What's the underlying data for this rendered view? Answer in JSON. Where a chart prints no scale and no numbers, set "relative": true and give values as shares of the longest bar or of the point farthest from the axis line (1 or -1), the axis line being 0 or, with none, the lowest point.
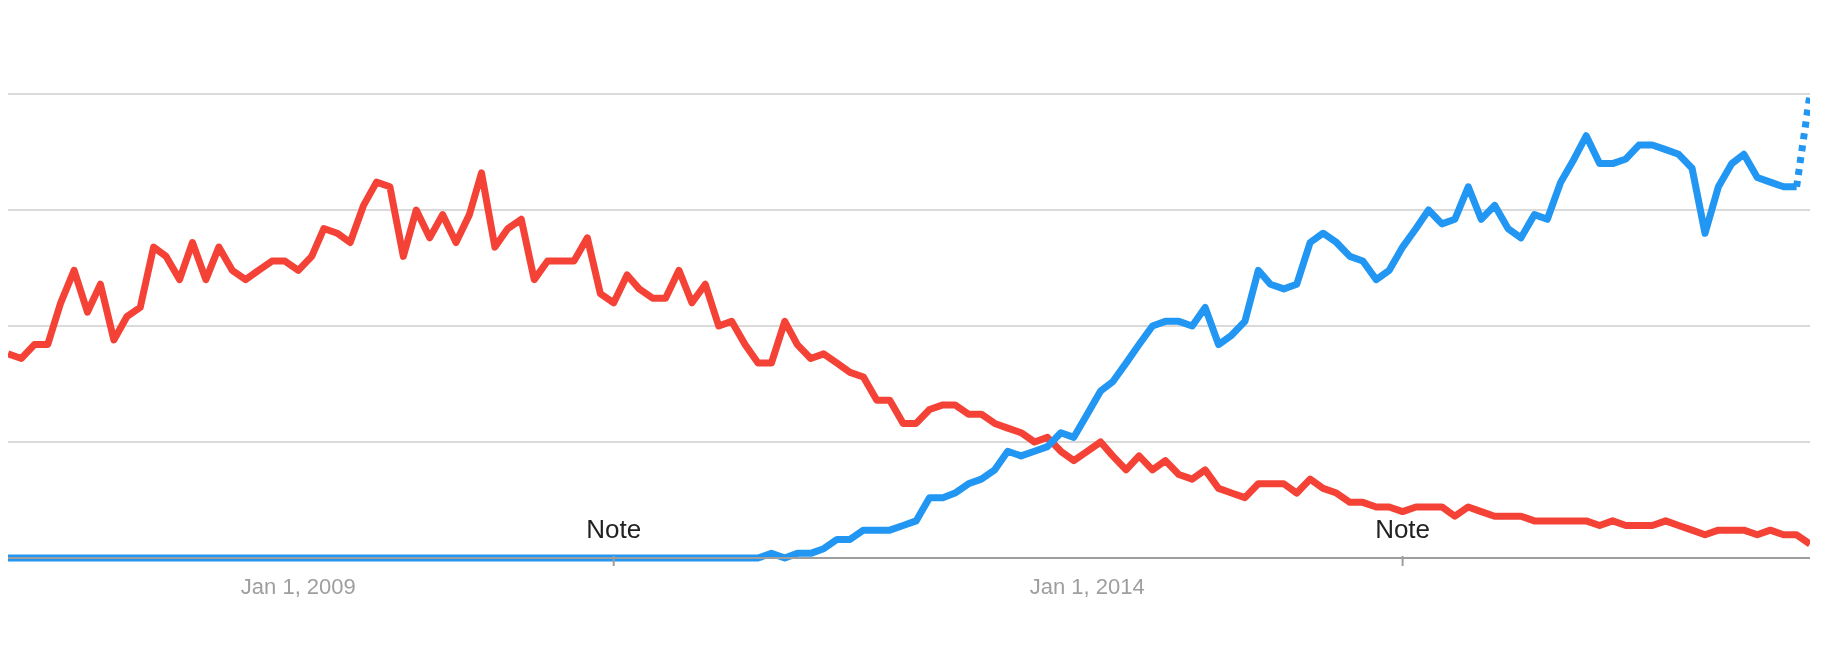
{
  "chart_data": {
    "type": "line",
    "relative": true,
    "grid": "y",
    "marker": "none",
    "x": [
      "2007-03",
      "2007-04",
      "2007-05",
      "2007-06",
      "2007-07",
      "2007-08",
      "2007-09",
      "2007-10",
      "2007-11",
      "2007-12",
      "2008-01",
      "2008-02",
      "2008-03",
      "2008-04",
      "2008-05",
      "2008-06",
      "2008-07",
      "2008-08",
      "2008-09",
      "2008-10",
      "2008-11",
      "2008-12",
      "2009-01",
      "2009-02",
      "2009-03",
      "2009-04",
      "2009-05",
      "2009-06",
      "2009-07",
      "2009-08",
      "2009-09",
      "2009-10",
      "2009-11",
      "2009-12",
      "2010-01",
      "2010-02",
      "2010-03",
      "2010-04",
      "2010-05",
      "2010-06",
      "2010-07",
      "2010-08",
      "2010-09",
      "2010-10",
      "2010-11",
      "2010-12",
      "2011-01",
      "2011-02",
      "2011-03",
      "2011-04",
      "2011-05",
      "2011-06",
      "2011-07",
      "2011-08",
      "2011-09",
      "2011-10",
      "2011-11",
      "2011-12",
      "2012-01",
      "2012-02",
      "2012-03",
      "2012-04",
      "2012-05",
      "2012-06",
      "2012-07",
      "2012-08",
      "2012-09",
      "2012-10",
      "2012-11",
      "2012-12",
      "2013-01",
      "2013-02",
      "2013-03",
      "2013-04",
      "2013-05",
      "2013-06",
      "2013-07",
      "2013-08",
      "2013-09",
      "2013-10",
      "2013-11",
      "2013-12",
      "2014-01",
      "2014-02",
      "2014-03",
      "2014-04",
      "2014-05",
      "2014-06",
      "2014-07",
      "2014-08",
      "2014-09",
      "2014-10",
      "2014-11",
      "2014-12",
      "2015-01",
      "2015-02",
      "2015-03",
      "2015-04",
      "2015-05",
      "2015-06",
      "2015-07",
      "2015-08",
      "2015-09",
      "2015-10",
      "2015-11",
      "2015-12",
      "2016-01",
      "2016-02",
      "2016-03",
      "2016-04",
      "2016-05",
      "2016-06",
      "2016-07",
      "2016-08",
      "2016-09",
      "2016-10",
      "2016-11",
      "2016-12",
      "2017-01",
      "2017-02",
      "2017-03",
      "2017-04",
      "2017-05",
      "2017-06",
      "2017-07",
      "2017-08",
      "2017-09",
      "2017-10",
      "2017-11",
      "2017-12",
      "2018-01",
      "2018-02",
      "2018-03",
      "2018-04",
      "2018-05",
      "2018-06",
      "2018-07",
      "2018-08"
    ],
    "xlim": [
      "2007-03",
      "2018-08"
    ],
    "xticks": [
      {
        "value": "2009-01-01",
        "label": "Jan 1, 2009"
      },
      {
        "value": "2011-01",
        "label": null
      },
      {
        "value": "2014-01-01",
        "label": "Jan 1, 2014"
      },
      {
        "value": "2016-01",
        "label": null
      }
    ],
    "series": [
      {
        "color": "#f44336",
        "values": [
          0.44,
          0.43,
          0.46,
          0.46,
          0.55,
          0.62,
          0.53,
          0.59,
          0.47,
          0.52,
          0.54,
          0.67,
          0.65,
          0.6,
          0.68,
          0.6,
          0.67,
          0.62,
          0.6,
          0.62,
          0.64,
          0.64,
          0.62,
          0.65,
          0.71,
          0.7,
          0.68,
          0.76,
          0.81,
          0.8,
          0.65,
          0.75,
          0.69,
          0.74,
          0.68,
          0.74,
          0.83,
          0.67,
          0.71,
          0.73,
          0.6,
          0.64,
          0.64,
          0.64,
          0.69,
          0.57,
          0.55,
          0.61,
          0.58,
          0.56,
          0.56,
          0.62,
          0.55,
          0.59,
          0.5,
          0.51,
          0.46,
          0.42,
          0.42,
          0.51,
          0.46,
          0.43,
          0.44,
          0.42,
          0.4,
          0.39,
          0.34,
          0.34,
          0.29,
          0.29,
          0.32,
          0.33,
          0.33,
          0.31,
          0.31,
          0.29,
          0.28,
          0.27,
          0.25,
          0.26,
          0.23,
          0.21,
          0.23,
          0.25,
          0.22,
          0.19,
          0.22,
          0.19,
          0.21,
          0.18,
          0.17,
          0.19,
          0.15,
          0.14,
          0.13,
          0.16,
          0.16,
          0.16,
          0.14,
          0.17,
          0.15,
          0.14,
          0.12,
          0.12,
          0.11,
          0.11,
          0.1,
          0.11,
          0.11,
          0.11,
          0.09,
          0.11,
          0.1,
          0.09,
          0.09,
          0.09,
          0.08,
          0.08,
          0.08,
          0.08,
          0.08,
          0.07,
          0.08,
          0.07,
          0.07,
          0.07,
          0.08,
          0.07,
          0.06,
          0.05,
          0.06,
          0.06,
          0.06,
          0.05,
          0.06,
          0.05,
          0.05,
          0.03
        ]
      },
      {
        "color": "#2196f3",
        "values": [
          0,
          0,
          0,
          0,
          0,
          0,
          0,
          0,
          0,
          0,
          0,
          0,
          0,
          0,
          0,
          0,
          0,
          0,
          0,
          0,
          0,
          0,
          0,
          0,
          0,
          0,
          0,
          0,
          0,
          0,
          0,
          0,
          0,
          0,
          0,
          0,
          0,
          0,
          0,
          0,
          0,
          0,
          0,
          0,
          0,
          0,
          0,
          0,
          0,
          0,
          0,
          0,
          0,
          0,
          0,
          0,
          0,
          0,
          0.01,
          0,
          0.01,
          0.01,
          0.02,
          0.04,
          0.04,
          0.06,
          0.06,
          0.06,
          0.07,
          0.08,
          0.13,
          0.13,
          0.14,
          0.16,
          0.17,
          0.19,
          0.23,
          0.22,
          0.23,
          0.24,
          0.27,
          0.26,
          0.31,
          0.36,
          0.38,
          0.42,
          0.46,
          0.5,
          0.51,
          0.51,
          0.5,
          0.54,
          0.46,
          0.48,
          0.51,
          0.62,
          0.59,
          0.58,
          0.59,
          0.68,
          0.7,
          0.68,
          0.65,
          0.64,
          0.6,
          0.62,
          0.67,
          0.71,
          0.75,
          0.72,
          0.73,
          0.8,
          0.73,
          0.76,
          0.71,
          0.69,
          0.74,
          0.73,
          0.81,
          0.86,
          0.91,
          0.85,
          0.85,
          0.86,
          0.89,
          0.89,
          0.88,
          0.87,
          0.84,
          0.7,
          0.8,
          0.85,
          0.87,
          0.82,
          0.81,
          0.8,
          0.8,
          null
        ]
      },
      {
        "color": "#2196f3",
        "line_style": "dotted",
        "x": [
          "2018-07",
          "2018-08"
        ],
        "values": [
          0.8,
          1
        ]
      }
    ],
    "annotations": [
      "Note",
      "Note"
    ]
  }
}
